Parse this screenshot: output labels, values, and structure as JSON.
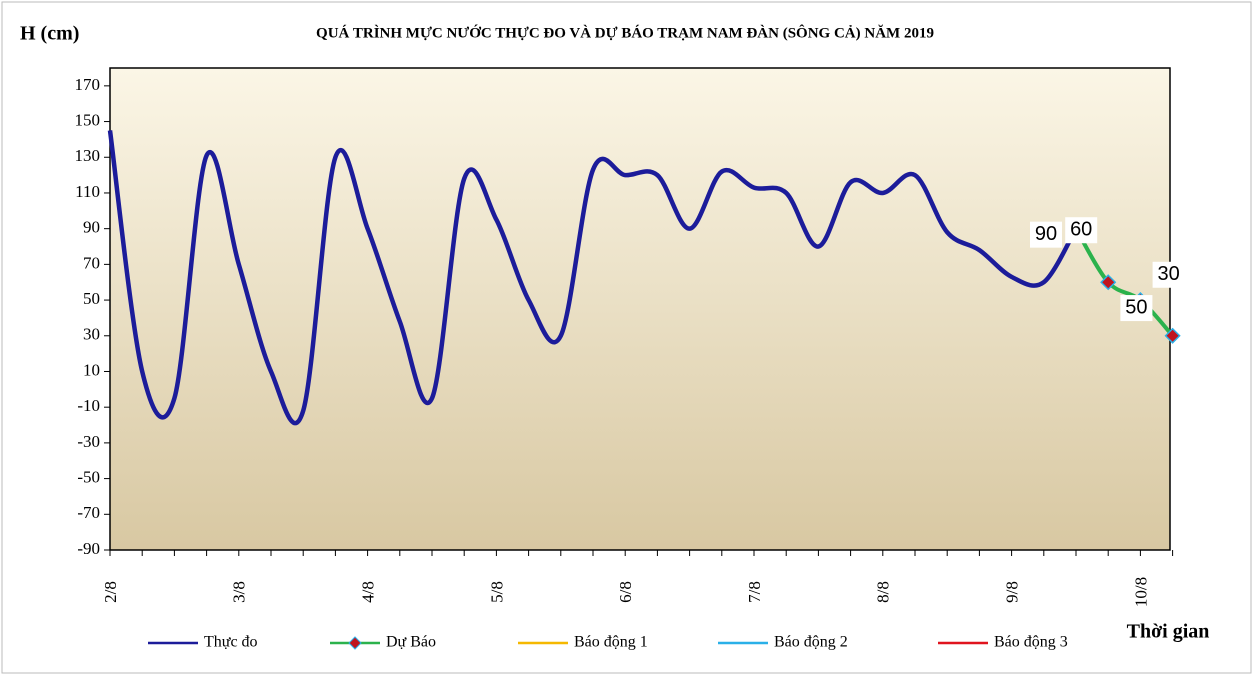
{
  "chart_data": {
    "type": "line",
    "title": "QUÁ TRÌNH MỰC NƯỚC THỰC ĐO VÀ DỰ BÁO TRẠM  NAM  ĐÀN (SÔNG CẢ) NĂM 2019",
    "y_axis_label": "H (cm)",
    "x_axis_label": "Thời gian",
    "categories": [
      "2/8",
      null,
      null,
      null,
      "3/8",
      null,
      null,
      null,
      "4/8",
      null,
      null,
      null,
      "5/8",
      null,
      null,
      null,
      "6/8",
      null,
      null,
      null,
      "7/8",
      null,
      null,
      null,
      "8/8",
      null,
      null,
      null,
      "9/8",
      null,
      null,
      null,
      "10/8",
      null
    ],
    "series": [
      {
        "name": "Thực đo",
        "color": "#1c1c9a",
        "values": [
          145,
          10,
          -5,
          131,
          70,
          10,
          -12,
          130,
          90,
          38,
          -5,
          118,
          95,
          50,
          30,
          123,
          120,
          120,
          90,
          122,
          113,
          110,
          80,
          116,
          110,
          120,
          88,
          78,
          63,
          60,
          90,
          null,
          null,
          null
        ]
      },
      {
        "name": "Dự Báo",
        "color": "#2bb24c",
        "marker_color": "#c0141e",
        "values": [
          null,
          null,
          null,
          null,
          null,
          null,
          null,
          null,
          null,
          null,
          null,
          null,
          null,
          null,
          null,
          null,
          null,
          null,
          null,
          null,
          null,
          null,
          null,
          null,
          null,
          null,
          null,
          null,
          null,
          null,
          90,
          60,
          50,
          30
        ]
      },
      {
        "name": "Báo động 1",
        "color": "#f5b800",
        "values": [
          null,
          null,
          null,
          null,
          null,
          null,
          null,
          null,
          null,
          null,
          null,
          null,
          null,
          null,
          null,
          null,
          null,
          null,
          null,
          null,
          null,
          null,
          null,
          null,
          null,
          null,
          null,
          null,
          null,
          null,
          null,
          null,
          null,
          null
        ]
      },
      {
        "name": "Báo động 2",
        "color": "#2ab0e8",
        "values": [
          null,
          null,
          null,
          null,
          null,
          null,
          null,
          null,
          null,
          null,
          null,
          null,
          null,
          null,
          null,
          null,
          null,
          null,
          null,
          null,
          null,
          null,
          null,
          null,
          null,
          null,
          null,
          null,
          null,
          null,
          null,
          null,
          null,
          null
        ]
      },
      {
        "name": "Báo động 3",
        "color": "#e0141e",
        "values": [
          null,
          null,
          null,
          null,
          null,
          null,
          null,
          null,
          null,
          null,
          null,
          null,
          null,
          null,
          null,
          null,
          null,
          null,
          null,
          null,
          null,
          null,
          null,
          null,
          null,
          null,
          null,
          null,
          null,
          null,
          null,
          null,
          null,
          null
        ]
      }
    ],
    "ylim": [
      -90,
      180
    ],
    "yticks": [
      -90,
      -70,
      -50,
      -30,
      -10,
      10,
      30,
      50,
      70,
      90,
      110,
      130,
      150,
      170
    ],
    "legend": "bottom"
  }
}
